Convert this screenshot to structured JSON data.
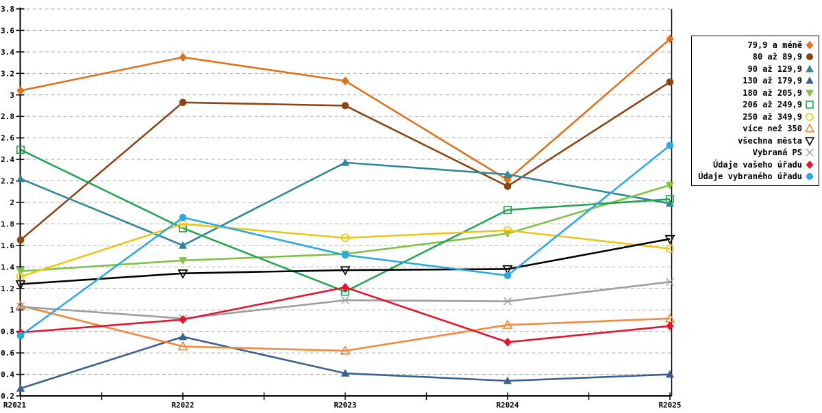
{
  "chart_data": {
    "type": "line",
    "title": "",
    "xlabel": "",
    "ylabel": "",
    "x_categories": [
      "R2021",
      "R2022",
      "R2023",
      "R2024",
      "R2025"
    ],
    "ylim": [
      0.2,
      3.8
    ],
    "y_tick_step": 0.2,
    "y_tick_labels": [
      "0.2",
      "0.4",
      "0.6",
      "0.8",
      "1",
      "1.2",
      "1.4",
      "1.6",
      "1.8",
      "2",
      "2.2",
      "2.4",
      "2.6",
      "2.8",
      "3",
      "3.2",
      "3.4",
      "3.6",
      "3.8"
    ],
    "grid": {
      "horizontal_dashed": true,
      "color": "#ABABAB"
    },
    "legend_position": "top-right",
    "series": [
      {
        "name": "79,9 a méně",
        "marker": "diamond",
        "filled": true,
        "color": "#E2711D",
        "values": [
          3.04,
          3.35,
          3.13,
          2.21,
          3.52
        ]
      },
      {
        "name": "80 až 89,9",
        "marker": "circle",
        "filled": true,
        "color": "#8B4513",
        "values": [
          1.65,
          2.93,
          2.9,
          2.15,
          3.12
        ]
      },
      {
        "name": "90 až 129,9",
        "marker": "triangle-up",
        "filled": true,
        "color": "#31859C",
        "values": [
          2.22,
          1.6,
          2.37,
          2.26,
          1.99
        ]
      },
      {
        "name": "130 až 179,9",
        "marker": "triangle-up",
        "filled": true,
        "color": "#3A6191",
        "values": [
          0.27,
          0.75,
          0.41,
          0.34,
          0.4
        ]
      },
      {
        "name": "180 až 205,9",
        "marker": "triangle-down",
        "filled": true,
        "color": "#7DC243",
        "values": [
          1.36,
          1.46,
          1.52,
          1.71,
          2.16
        ]
      },
      {
        "name": "206 až 249,9",
        "marker": "square",
        "filled": false,
        "color": "#21A64F",
        "values": [
          2.49,
          1.76,
          1.17,
          1.93,
          2.03
        ]
      },
      {
        "name": "250 až 349,9",
        "marker": "circle",
        "filled": false,
        "color": "#F0C317",
        "values": [
          1.31,
          1.8,
          1.67,
          1.74,
          1.57
        ]
      },
      {
        "name": "více než 350",
        "marker": "triangle-up",
        "filled": false,
        "color": "#F5883B",
        "values": [
          1.04,
          0.66,
          0.62,
          0.86,
          0.92
        ]
      },
      {
        "name": "všechna města",
        "marker": "triangle-down",
        "filled": false,
        "color": "#000000",
        "values": [
          1.24,
          1.34,
          1.37,
          1.38,
          1.66
        ]
      },
      {
        "name": "Vybraná PS",
        "marker": "x",
        "filled": false,
        "color": "#9E9E9E",
        "values": [
          1.03,
          0.92,
          1.09,
          1.08,
          1.26
        ]
      },
      {
        "name": "Údaje vašeho úřadu",
        "marker": "diamond",
        "filled": true,
        "color": "#E8132B",
        "values": [
          0.79,
          0.91,
          1.21,
          0.7,
          0.85
        ]
      },
      {
        "name": "Údaje vybraného úřadu",
        "marker": "circle",
        "filled": true,
        "color": "#2BAAE2",
        "values": [
          0.76,
          1.86,
          1.51,
          1.32,
          2.53
        ]
      }
    ]
  }
}
